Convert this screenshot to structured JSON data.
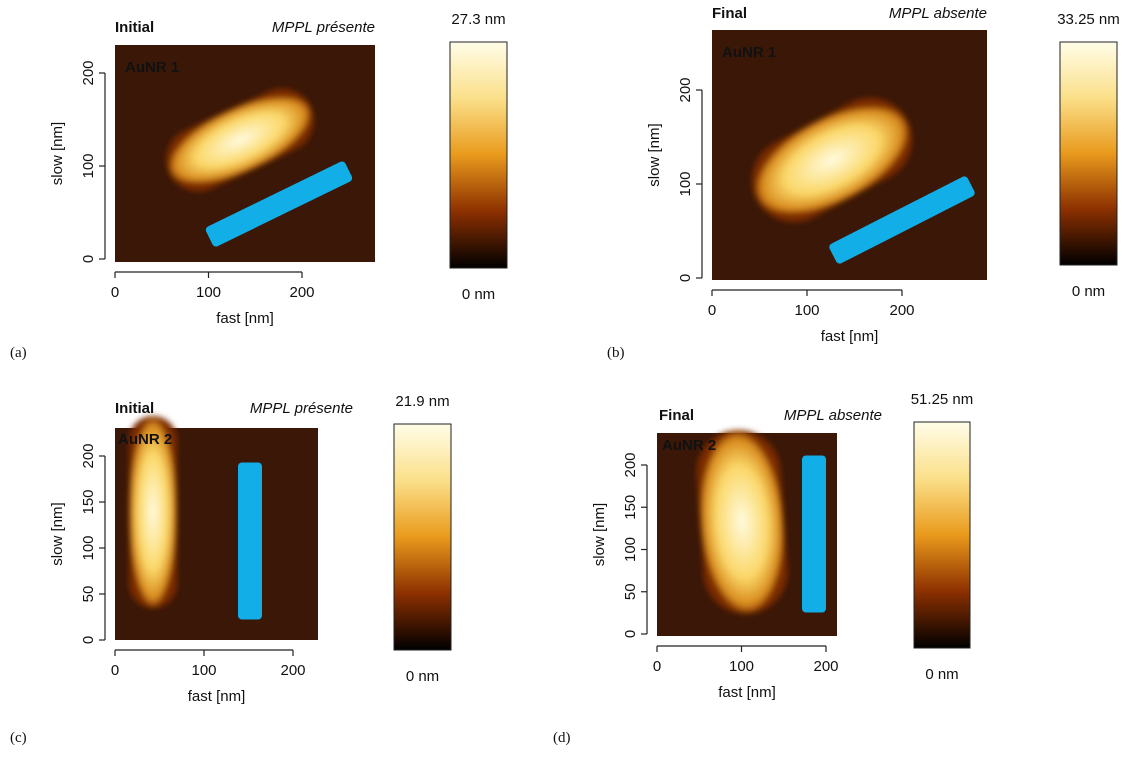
{
  "panels": [
    {
      "label": "(a)",
      "title": "Initial",
      "condition": "MPPL présente",
      "sample": "AuNR 1",
      "xlabel": "fast [nm]",
      "ylabel": "slow [nm]",
      "xticks": [
        0,
        100,
        200
      ],
      "yticks": [
        0,
        100,
        200
      ],
      "colorbar": {
        "max": "27.3 nm",
        "min": "0 nm"
      }
    },
    {
      "label": "(b)",
      "title": "Final",
      "condition": "MPPL absente",
      "sample": "AuNR 1",
      "xlabel": "fast [nm]",
      "ylabel": "slow [nm]",
      "xticks": [
        0,
        100,
        200
      ],
      "yticks": [
        0,
        100,
        200
      ],
      "colorbar": {
        "max": "33.25 nm",
        "min": "0 nm"
      }
    },
    {
      "label": "(c)",
      "title": "Initial",
      "condition": "MPPL présente",
      "sample": "AuNR 2",
      "xlabel": "fast [nm]",
      "ylabel": "slow [nm]",
      "xticks": [
        0,
        100,
        200
      ],
      "yticks": [
        0,
        50,
        100,
        150,
        200
      ],
      "colorbar": {
        "max": "21.9 nm",
        "min": "0 nm"
      }
    },
    {
      "label": "(d)",
      "title": "Final",
      "condition": "MPPL absente",
      "sample": "AuNR 2",
      "xlabel": "fast [nm]",
      "ylabel": "slow [nm]",
      "xticks": [
        0,
        100,
        200
      ],
      "yticks": [
        0,
        50,
        100,
        150,
        200
      ],
      "colorbar": {
        "max": "51.25 nm",
        "min": "0 nm"
      }
    }
  ]
}
